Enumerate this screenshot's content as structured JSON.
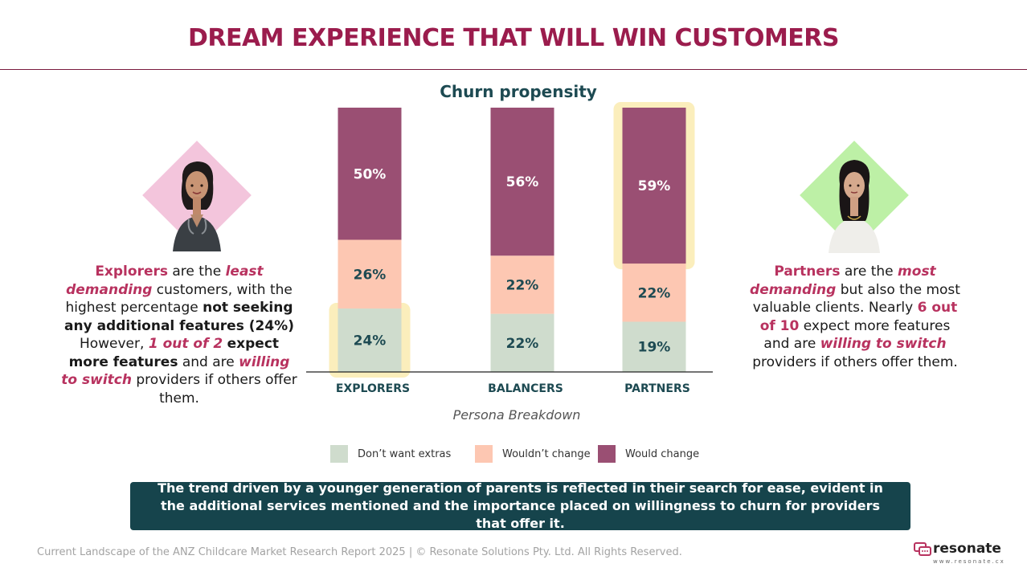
{
  "header": {
    "title": "DREAM EXPERIENCE THAT WILL WIN CUSTOMERS"
  },
  "chart_data": {
    "type": "bar",
    "stacked": true,
    "title": "Churn propensity",
    "xlabel": "Persona Breakdown",
    "categories": [
      "EXPLORERS",
      "BALANCERS",
      "PARTNERS"
    ],
    "series": [
      {
        "name": "Don’t want extras",
        "values": [
          24,
          22,
          19
        ],
        "labels": [
          "24%",
          "22%",
          "19%"
        ],
        "color": "#cfdccd"
      },
      {
        "name": "Wouldn’t change",
        "values": [
          26,
          22,
          22
        ],
        "labels": [
          "26%",
          "22%",
          "22%"
        ],
        "color": "#fdc7b2"
      },
      {
        "name": "Would change",
        "values": [
          50,
          56,
          59
        ],
        "labels": [
          "50%",
          "56%",
          "59%"
        ],
        "color": "#9a4f73"
      }
    ],
    "ylim": [
      0,
      100
    ],
    "highlights": [
      {
        "category": "EXPLORERS",
        "series": "Don’t want extras"
      },
      {
        "category": "PARTNERS",
        "series": "Would change"
      }
    ],
    "highlight_color": "#fbeebc",
    "legend": "bottom"
  },
  "left_panel": {
    "persona_icon": "woman-nurse-portrait",
    "diamond_color": "#f3c5dc",
    "t1": "Explorers",
    "t2": " are the ",
    "t3": "least demanding",
    "t4": " customers, with the highest percentage ",
    "t5": "not seeking any additional features (24%)",
    "t6": " However, ",
    "t7": "1 out of 2",
    "t8": " ",
    "t9": "expect more features",
    "t10": " and are ",
    "t11": "willing to switch",
    "t12": " providers if others offer them."
  },
  "right_panel": {
    "persona_icon": "woman-professional-portrait",
    "diamond_color": "#bdf0a6",
    "t1": "Partners",
    "t2": " are the ",
    "t3": "most demanding",
    "t4": " but also the most valuable clients. Nearly ",
    "t5": "6 out of 10",
    "t6": " expect more features and are ",
    "t7": "willing to switch",
    "t8": " providers if others offer them."
  },
  "banner": {
    "text": "The trend driven by a younger generation of parents is reflected in their search for ease, evident in the additional services mentioned and the importance placed on willingness to churn for providers that offer it."
  },
  "footer": {
    "text": "Current Landscape of the ANZ Childcare Market Research Report 2025 | © Resonate Solutions Pty. Ltd. All Rights Reserved."
  },
  "logo": {
    "word": "resonate",
    "url": "www.resonate.cx",
    "icon": "speech-bubble-logo-icon"
  }
}
